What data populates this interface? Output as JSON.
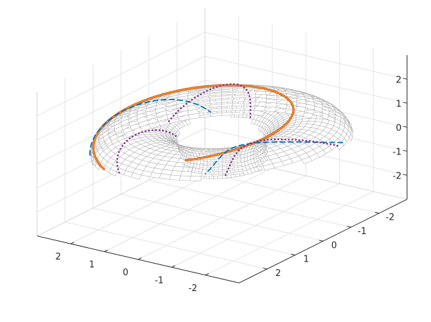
{
  "chart_data": {
    "type": "surface3d",
    "title": "",
    "xlabel": "",
    "ylabel": "",
    "zlabel": "",
    "surface": {
      "shape": "torus",
      "major_radius": 2,
      "minor_radius": 1,
      "mesh_color": "#b4b4b4",
      "face_color": "#ffffff"
    },
    "axes": {
      "x": {
        "ticks": [
          -2,
          -1,
          0,
          1,
          2
        ],
        "tick_labels": [
          "-2",
          "-1",
          "0",
          "1",
          "2"
        ],
        "lim": [
          -3,
          3
        ]
      },
      "y": {
        "ticks": [
          2,
          1,
          0,
          -1,
          -2
        ],
        "tick_labels": [
          "2",
          "1",
          "0",
          "-1",
          "-2"
        ],
        "lim": [
          -3,
          3
        ]
      },
      "z": {
        "ticks": [
          2,
          1,
          0,
          -1,
          -2
        ],
        "tick_labels": [
          "2",
          "1",
          "0",
          "-1",
          "-2"
        ],
        "lim": [
          -3,
          3
        ]
      },
      "grid": true,
      "box": "back-planes"
    },
    "series": [
      {
        "style": "solid",
        "color": "#d95319",
        "highlight_color": "#edb120",
        "winding": {
          "toroidal": 2,
          "poloidal": 1
        }
      },
      {
        "style": "dashed",
        "color": "#0072bd",
        "winding": {
          "toroidal": 1,
          "poloidal": 2
        }
      },
      {
        "style": "dotted",
        "color": "#7e2f8e",
        "winding": {
          "toroidal": 1,
          "poloidal": 3
        }
      }
    ]
  }
}
